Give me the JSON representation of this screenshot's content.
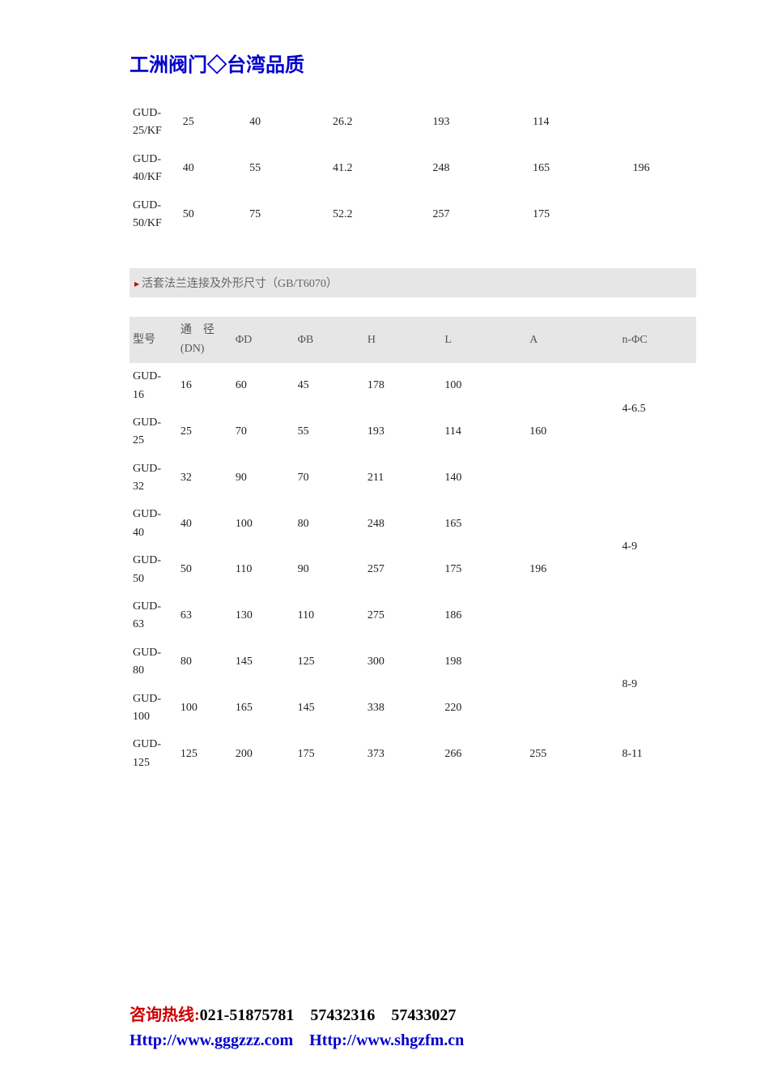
{
  "header": {
    "text": "工洲阀门◇台湾品质"
  },
  "table1": {
    "rows": [
      {
        "model": "GUD-25/KF",
        "dn": "25",
        "phiD": "40",
        "phiB": "26.2",
        "H": "193",
        "L": "114"
      },
      {
        "model": "GUD-40/KF",
        "dn": "40",
        "phiD": "55",
        "phiB": "41.2",
        "H": "248",
        "L": "165"
      },
      {
        "model": "GUD-50/KF",
        "dn": "50",
        "phiD": "75",
        "phiB": "52.2",
        "H": "257",
        "L": "175"
      }
    ],
    "a_shared": "196"
  },
  "section2": {
    "title": "活套法兰连接及外形尺寸（",
    "gb": "GB/T6070",
    "close": "）"
  },
  "table2": {
    "headers": {
      "model": "型号",
      "dn_line1": "通　径",
      "dn_line2": "(DN)",
      "phiD": "ΦD",
      "phiB": "ΦB",
      "H": "H",
      "L": "L",
      "A": "A",
      "nPhiC": "n-ΦC"
    },
    "rows": [
      {
        "model": "GUD-16",
        "dn": "16",
        "phiD": "60",
        "phiB": "45",
        "H": "178",
        "L": "100"
      },
      {
        "model": "GUD-25",
        "dn": "25",
        "phiD": "70",
        "phiB": "55",
        "H": "193",
        "L": "114"
      },
      {
        "model": "GUD-32",
        "dn": "32",
        "phiD": "90",
        "phiB": "70",
        "H": "211",
        "L": "140"
      },
      {
        "model": "GUD-40",
        "dn": "40",
        "phiD": "100",
        "phiB": "80",
        "H": "248",
        "L": "165"
      },
      {
        "model": "GUD-50",
        "dn": "50",
        "phiD": "110",
        "phiB": "90",
        "H": "257",
        "L": "175"
      },
      {
        "model": "GUD-63",
        "dn": "63",
        "phiD": "130",
        "phiB": "110",
        "H": "275",
        "L": "186"
      },
      {
        "model": "GUD-80",
        "dn": "80",
        "phiD": "145",
        "phiB": "125",
        "H": "300",
        "L": "198"
      },
      {
        "model": "GUD-100",
        "dn": "100",
        "phiD": "165",
        "phiB": "145",
        "H": "338",
        "L": "220"
      },
      {
        "model": "GUD-125",
        "dn": "125",
        "phiD": "200",
        "phiB": "175",
        "H": "373",
        "L": "266"
      }
    ],
    "a_groups": [
      {
        "span": 3,
        "value": "160"
      },
      {
        "span": 3,
        "value": "196"
      },
      {
        "span": 2,
        "value": ""
      },
      {
        "span": 1,
        "value": "255"
      }
    ],
    "nphic_groups": [
      {
        "span": 2,
        "value": "4-6.5"
      },
      {
        "span": 4,
        "value": "4-9"
      },
      {
        "span": 2,
        "value": "8-9"
      },
      {
        "span": 1,
        "value": "8-11"
      }
    ]
  },
  "footer": {
    "label": "咨询热线",
    "colon": ":",
    "phones": "021-51875781　57432316　57433027",
    "url1": "Http://www.gggzzz.com",
    "url2": "Http://www.shgzfm.cn"
  }
}
